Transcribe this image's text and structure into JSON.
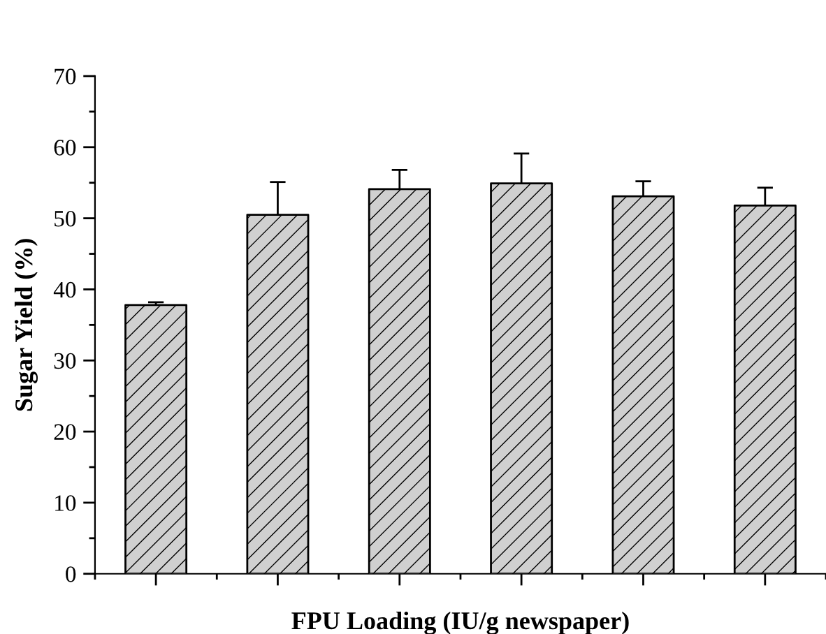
{
  "chart_data": {
    "type": "bar",
    "xlabel": "FPU Loading (IU/g newspaper)",
    "ylabel": "Sugar Yield (%)",
    "categories": [
      null,
      null,
      null,
      null,
      null,
      null
    ],
    "values": [
      37.8,
      50.5,
      54.1,
      54.9,
      53.1,
      51.8
    ],
    "errors": [
      0.4,
      4.6,
      2.7,
      4.2,
      2.1,
      2.5
    ],
    "color": "#d0d0d0",
    "ylim": [
      0,
      70
    ],
    "yticks": [
      0,
      10,
      20,
      30,
      40,
      50,
      60,
      70
    ],
    "grid": false
  }
}
